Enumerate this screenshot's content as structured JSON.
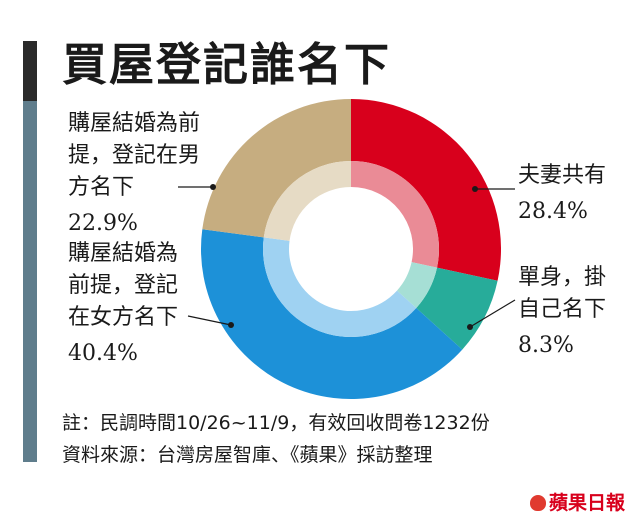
{
  "title": "買屋登記誰名下",
  "chart_data": {
    "type": "pie",
    "title": "買屋登記誰名下",
    "slices": [
      {
        "label": "夫妻共有",
        "value": 28.4,
        "value_label": "28.4%",
        "color": "#d8001c",
        "inner_color": "#ea8b96"
      },
      {
        "label": "單身，掛自己名下",
        "value": 8.3,
        "value_label": "8.3%",
        "color": "#27ac9a",
        "inner_color": "#a6dfd5"
      },
      {
        "label": "購屋結婚為前提，登記在女方名下",
        "value": 40.4,
        "value_label": "40.4%",
        "color": "#1d91d8",
        "inner_color": "#9fd2f2"
      },
      {
        "label": "購屋結婚為前提，登記在男方名下",
        "value": 22.9,
        "value_label": "22.9%",
        "color": "#c6ad80",
        "inner_color": "#e6dbc5"
      }
    ]
  },
  "labels": {
    "couple": {
      "lines": [
        "夫妻共有"
      ],
      "pct": "28.4%"
    },
    "single": {
      "lines": [
        "單身，掛",
        "自己名下"
      ],
      "pct": "8.3%"
    },
    "female": {
      "lines": [
        "購屋結婚為",
        "前提，登記",
        "在女方名下"
      ],
      "pct": "40.4%"
    },
    "male": {
      "lines": [
        "購屋結婚為前",
        "提，登記在男",
        "方名下"
      ],
      "pct": "22.9%"
    }
  },
  "notes": {
    "line1": "註：民調時間10/26~11/9，有效回收問卷1232份",
    "line2": "資料來源：台灣房屋智庫、《蘋果》採訪整理"
  },
  "logo": "蘋果日報"
}
